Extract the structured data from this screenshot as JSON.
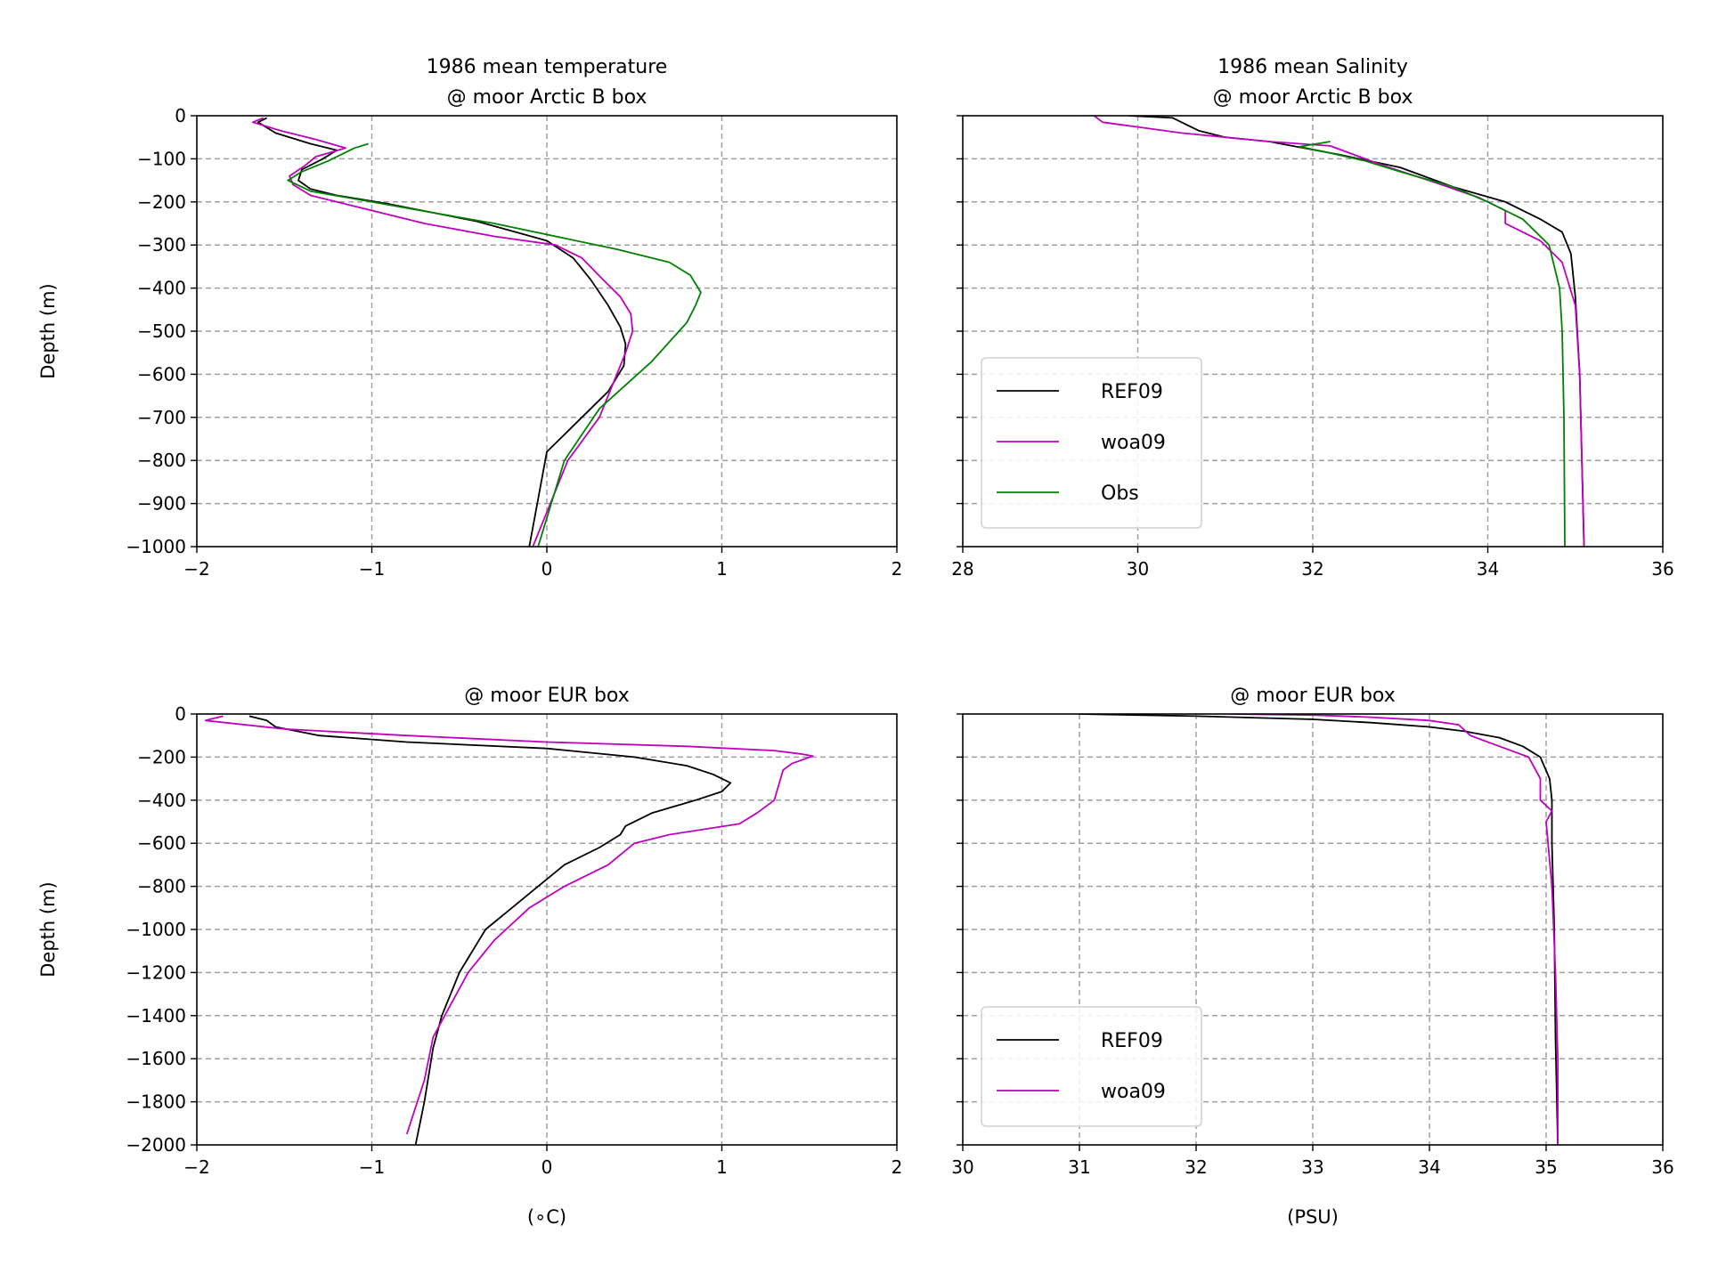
{
  "colors": {
    "REF09": "#000000",
    "woa09": "#bf00bf",
    "Obs": "#008000",
    "grid": "#a0a0a0"
  },
  "chart_data": [
    {
      "type": "line",
      "title": "1986 mean temperature\n@ moor Arctic B box",
      "xlabel": "",
      "ylabel": "Depth (m)",
      "xlim": [
        -2,
        2
      ],
      "ylim": [
        -1000,
        0
      ],
      "xticks": [
        -2,
        -1,
        0,
        1,
        2
      ],
      "xtick_labels": [
        "−2",
        "−1",
        "0",
        "1",
        "2"
      ],
      "yticks": [
        0,
        -100,
        -200,
        -300,
        -400,
        -500,
        -600,
        -700,
        -800,
        -900,
        -1000
      ],
      "ytick_labels": [
        "0",
        "−100",
        "−200",
        "−300",
        "−400",
        "−500",
        "−600",
        "−700",
        "−800",
        "−900",
        "−1000"
      ],
      "grid": true,
      "legend": null,
      "series": [
        {
          "name": "REF09",
          "x": [
            -1.6,
            -1.65,
            -1.55,
            -1.35,
            -1.2,
            -1.28,
            -1.4,
            -1.42,
            -1.35,
            -1.2,
            -0.9,
            -0.4,
            0.0,
            0.15,
            0.25,
            0.35,
            0.42,
            0.45,
            0.44,
            0.35,
            0.2,
            0.0,
            -0.1
          ],
          "y": [
            -5,
            -15,
            -40,
            -65,
            -80,
            -100,
            -125,
            -150,
            -170,
            -185,
            -205,
            -245,
            -290,
            -330,
            -380,
            -440,
            -490,
            -530,
            -580,
            -640,
            -700,
            -780,
            -1000
          ]
        },
        {
          "name": "woa09",
          "x": [
            -1.62,
            -1.68,
            -1.52,
            -1.32,
            -1.15,
            -1.32,
            -1.38,
            -1.47,
            -1.45,
            -1.35,
            -1.1,
            -0.7,
            -0.3,
            0.05,
            0.2,
            0.32,
            0.42,
            0.48,
            0.49,
            0.45,
            0.4,
            0.3,
            0.12,
            -0.08
          ],
          "y": [
            -5,
            -15,
            -35,
            -55,
            -75,
            -95,
            -115,
            -140,
            -160,
            -185,
            -210,
            -250,
            -280,
            -300,
            -330,
            -380,
            -420,
            -460,
            -500,
            -550,
            -600,
            -700,
            -800,
            -1000
          ]
        },
        {
          "name": "Obs",
          "x": [
            -1.02,
            -1.1,
            -1.25,
            -1.4,
            -1.48,
            -1.35,
            -1.0,
            -0.3,
            0.4,
            0.7,
            0.82,
            0.88,
            0.85,
            0.8,
            0.6,
            0.3,
            0.1,
            -0.05
          ],
          "y": [
            -65,
            -75,
            -105,
            -130,
            -150,
            -175,
            -200,
            -250,
            -310,
            -340,
            -370,
            -410,
            -440,
            -480,
            -570,
            -680,
            -800,
            -1000
          ]
        }
      ]
    },
    {
      "type": "line",
      "title": "1986 mean Salinity\n@ moor Arctic B box",
      "xlabel": "",
      "ylabel": "",
      "xlim": [
        28,
        36
      ],
      "ylim": [
        -1000,
        0
      ],
      "xticks": [
        28,
        30,
        32,
        34,
        36
      ],
      "xtick_labels": [
        "28",
        "30",
        "32",
        "34",
        "36"
      ],
      "yticks": [
        0,
        -100,
        -200,
        -300,
        -400,
        -500,
        -600,
        -700,
        -800,
        -900,
        -1000
      ],
      "ytick_labels": [],
      "grid": true,
      "legend": "lower-left",
      "series": [
        {
          "name": "REF09",
          "x": [
            29.9,
            30.4,
            30.5,
            30.7,
            31.0,
            31.5,
            32.3,
            33.0,
            33.6,
            34.2,
            34.6,
            34.85,
            34.95,
            35.0,
            35.05,
            35.1
          ],
          "y": [
            0,
            -5,
            -15,
            -35,
            -50,
            -60,
            -90,
            -120,
            -165,
            -200,
            -240,
            -270,
            -320,
            -420,
            -600,
            -1000
          ]
        },
        {
          "name": "woa09",
          "x": [
            29.5,
            29.6,
            30.5,
            31.5,
            32.2,
            32.8,
            33.4,
            33.9,
            34.2,
            34.2,
            34.6,
            34.85,
            35.0,
            35.05,
            35.1
          ],
          "y": [
            0,
            -15,
            -40,
            -60,
            -70,
            -115,
            -155,
            -190,
            -220,
            -250,
            -290,
            -340,
            -440,
            -600,
            -1000
          ]
        },
        {
          "name": "Obs",
          "x": [
            32.2,
            31.85,
            32.1,
            32.6,
            33.0,
            33.6,
            34.0,
            34.4,
            34.7,
            34.82,
            34.85,
            34.87,
            34.88
          ],
          "y": [
            -60,
            -72,
            -82,
            -105,
            -130,
            -165,
            -200,
            -240,
            -300,
            -400,
            -500,
            -700,
            -1000
          ]
        }
      ]
    },
    {
      "type": "line",
      "title": "@ moor EUR box",
      "xlabel": "(∘C)",
      "ylabel": "Depth (m)",
      "xlim": [
        -2,
        2
      ],
      "ylim": [
        -2000,
        0
      ],
      "xticks": [
        -2,
        -1,
        0,
        1,
        2
      ],
      "xtick_labels": [
        "−2",
        "−1",
        "0",
        "1",
        "2"
      ],
      "yticks": [
        0,
        -200,
        -400,
        -600,
        -800,
        -1000,
        -1200,
        -1400,
        -1600,
        -1800,
        -2000
      ],
      "ytick_labels": [
        "0",
        "−200",
        "−400",
        "−600",
        "−800",
        "−1000",
        "−1200",
        "−1400",
        "−1600",
        "−1800",
        "−2000"
      ],
      "grid": true,
      "legend": null,
      "series": [
        {
          "name": "REF09",
          "x": [
            -1.7,
            -1.6,
            -1.55,
            -1.3,
            -0.8,
            0.0,
            0.5,
            0.8,
            0.95,
            1.05,
            1.0,
            0.85,
            0.6,
            0.45,
            0.42,
            0.3,
            0.1,
            -0.05,
            -0.2,
            -0.35,
            -0.5,
            -0.6,
            -0.65,
            -0.7,
            -0.75
          ],
          "y": [
            -10,
            -30,
            -60,
            -100,
            -130,
            -160,
            -200,
            -240,
            -280,
            -320,
            -360,
            -400,
            -460,
            -520,
            -560,
            -620,
            -700,
            -800,
            -900,
            -1000,
            -1200,
            -1400,
            -1550,
            -1800,
            -2000
          ]
        },
        {
          "name": "woa09",
          "x": [
            -1.85,
            -1.9,
            -1.95,
            -1.5,
            -0.8,
            0.0,
            0.8,
            1.3,
            1.45,
            1.52,
            1.4,
            1.35,
            1.3,
            1.2,
            1.1,
            0.7,
            0.5,
            0.35,
            0.1,
            -0.1,
            -0.3,
            -0.45,
            -0.55,
            -0.65,
            -0.7,
            -0.8
          ],
          "y": [
            -10,
            -20,
            -30,
            -70,
            -100,
            -130,
            -150,
            -170,
            -185,
            -195,
            -230,
            -260,
            -400,
            -460,
            -510,
            -560,
            -600,
            -700,
            -800,
            -900,
            -1050,
            -1200,
            -1350,
            -1500,
            -1700,
            -1950
          ]
        }
      ]
    },
    {
      "type": "line",
      "title": "@ moor EUR box",
      "xlabel": "(PSU)",
      "ylabel": "",
      "xlim": [
        30,
        36
      ],
      "ylim": [
        -2000,
        0
      ],
      "xticks": [
        30,
        31,
        32,
        33,
        34,
        35,
        36
      ],
      "xtick_labels": [
        "30",
        "31",
        "32",
        "33",
        "34",
        "35",
        "36"
      ],
      "yticks": [
        0,
        -200,
        -400,
        -600,
        -800,
        -1000,
        -1200,
        -1400,
        -1600,
        -1800,
        -2000
      ],
      "ytick_labels": [],
      "grid": true,
      "legend": "lower-left",
      "series": [
        {
          "name": "REF09",
          "x": [
            31.0,
            32.0,
            33.0,
            33.5,
            34.0,
            34.3,
            34.6,
            34.8,
            34.95,
            35.03,
            35.05,
            35.05,
            35.07,
            35.08,
            35.1
          ],
          "y": [
            0,
            -10,
            -25,
            -40,
            -60,
            -80,
            -110,
            -150,
            -200,
            -300,
            -400,
            -600,
            -1000,
            -1500,
            -2000
          ]
        },
        {
          "name": "woa09",
          "x": [
            32.3,
            33.0,
            33.5,
            34.0,
            34.25,
            34.35,
            34.6,
            34.85,
            34.95,
            34.95,
            35.05,
            35.0,
            35.05,
            35.08,
            35.1,
            35.1
          ],
          "y": [
            0,
            -5,
            -15,
            -30,
            -50,
            -100,
            -150,
            -200,
            -300,
            -400,
            -450,
            -500,
            -800,
            -1200,
            -1600,
            -2000
          ]
        }
      ]
    }
  ]
}
